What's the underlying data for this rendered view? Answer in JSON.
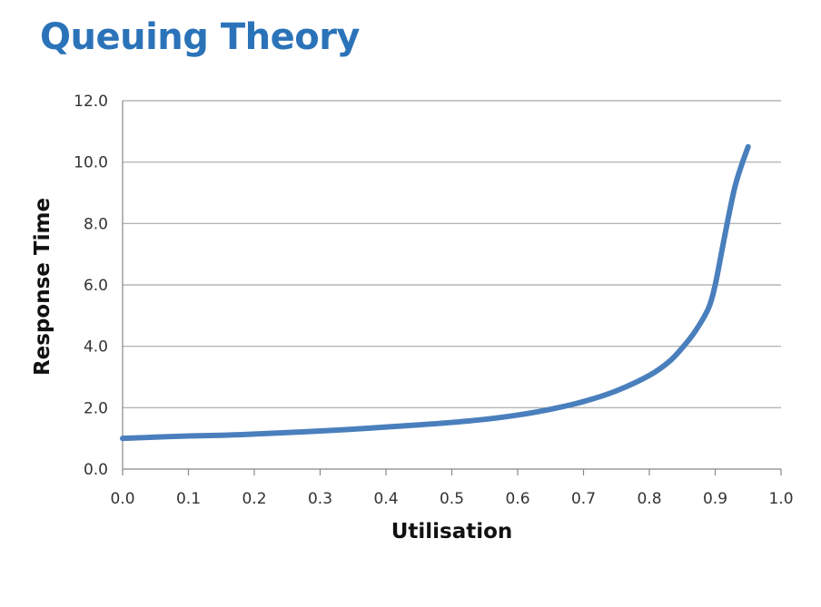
{
  "chart_data": {
    "type": "line",
    "title": "Queuing Theory",
    "xlabel": "Utilisation",
    "ylabel": "Response Time",
    "xlim": [
      0.0,
      1.0
    ],
    "ylim": [
      0.0,
      12.0
    ],
    "xticks": [
      "0.0",
      "0.1",
      "0.2",
      "0.3",
      "0.4",
      "0.5",
      "0.6",
      "0.7",
      "0.8",
      "0.9",
      "1.0"
    ],
    "yticks": [
      "0.0",
      "2.0",
      "4.0",
      "6.0",
      "8.0",
      "10.0",
      "12.0"
    ],
    "grid": "horizontal",
    "legend": "none",
    "series": [
      {
        "x": [
          0.0,
          0.05,
          0.1,
          0.15,
          0.2,
          0.25,
          0.3,
          0.35,
          0.4,
          0.45,
          0.5,
          0.55,
          0.6,
          0.65,
          0.7,
          0.75,
          0.8,
          0.83,
          0.85,
          0.87,
          0.89,
          0.9,
          0.91,
          0.92,
          0.93,
          0.94,
          0.95
        ],
        "values": [
          1.0,
          1.04,
          1.08,
          1.1,
          1.14,
          1.19,
          1.24,
          1.3,
          1.37,
          1.44,
          1.52,
          1.62,
          1.76,
          1.95,
          2.2,
          2.55,
          3.05,
          3.5,
          3.95,
          4.5,
          5.25,
          6.0,
          7.1,
          8.2,
          9.2,
          9.9,
          10.5
        ]
      }
    ]
  },
  "colors": {
    "title": "#2b73b9",
    "line": "#4a7fbd",
    "grid": "#a8a8a8",
    "axis": "#888888"
  }
}
